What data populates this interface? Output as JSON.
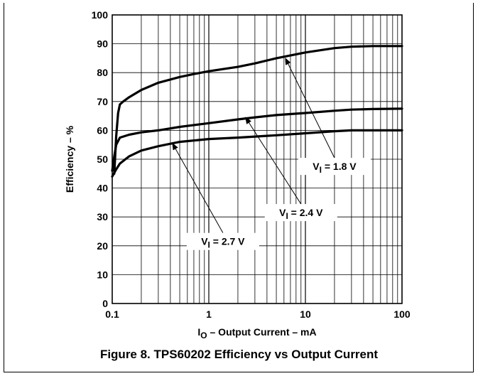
{
  "chart_data": {
    "type": "line",
    "title": "",
    "xlabel": {
      "main": "I",
      "sub": "O",
      "rest": " – Output Current – mA"
    },
    "ylabel": "Efficiency – %",
    "xscale": "log",
    "xlim": [
      0.1,
      100
    ],
    "ylim": [
      0,
      100
    ],
    "grid": true,
    "x_ticks": [
      {
        "value": 0.1,
        "label": "0.1"
      },
      {
        "value": 1,
        "label": "1"
      },
      {
        "value": 10,
        "label": "10"
      },
      {
        "value": 100,
        "label": "100"
      }
    ],
    "y_ticks": [
      0,
      10,
      20,
      30,
      40,
      50,
      60,
      70,
      80,
      90,
      100
    ],
    "series": [
      {
        "key": "vi18",
        "label": {
          "main": "V",
          "sub": "I",
          "rest": " = 1.8 V"
        },
        "points": [
          [
            0.105,
            45
          ],
          [
            0.11,
            58
          ],
          [
            0.115,
            66
          ],
          [
            0.12,
            69
          ],
          [
            0.13,
            70
          ],
          [
            0.15,
            71.5
          ],
          [
            0.2,
            74
          ],
          [
            0.3,
            76.5
          ],
          [
            0.5,
            78.5
          ],
          [
            0.7,
            79.5
          ],
          [
            1,
            80.5
          ],
          [
            2,
            82
          ],
          [
            3,
            83.2
          ],
          [
            5,
            85
          ],
          [
            10,
            87
          ],
          [
            20,
            88.5
          ],
          [
            30,
            89
          ],
          [
            50,
            89.2
          ],
          [
            100,
            89.2
          ]
        ]
      },
      {
        "key": "vi24",
        "label": {
          "main": "V",
          "sub": "I",
          "rest": " = 2.4 V"
        },
        "points": [
          [
            0.1,
            46
          ],
          [
            0.105,
            51
          ],
          [
            0.11,
            55
          ],
          [
            0.12,
            57.5
          ],
          [
            0.15,
            58.5
          ],
          [
            0.2,
            59.3
          ],
          [
            0.3,
            60
          ],
          [
            0.5,
            61.2
          ],
          [
            1,
            62.5
          ],
          [
            2,
            63.8
          ],
          [
            3,
            64.5
          ],
          [
            5,
            65.3
          ],
          [
            10,
            66
          ],
          [
            20,
            66.8
          ],
          [
            30,
            67.2
          ],
          [
            50,
            67.4
          ],
          [
            100,
            67.5
          ]
        ]
      },
      {
        "key": "vi27",
        "label": {
          "main": "V",
          "sub": "I",
          "rest": " = 2.7 V"
        },
        "points": [
          [
            0.1,
            44
          ],
          [
            0.11,
            46.5
          ],
          [
            0.12,
            48.5
          ],
          [
            0.15,
            51
          ],
          [
            0.2,
            53
          ],
          [
            0.3,
            54.5
          ],
          [
            0.5,
            56
          ],
          [
            1,
            57
          ],
          [
            2,
            57.5
          ],
          [
            5,
            58.3
          ],
          [
            10,
            59
          ],
          [
            20,
            59.7
          ],
          [
            30,
            60
          ],
          [
            50,
            60
          ],
          [
            100,
            60
          ]
        ]
      }
    ],
    "annotations": [
      {
        "series": "vi18",
        "arrow_to": [
          6.2,
          85
        ],
        "label_at": [
          20,
          48
        ]
      },
      {
        "series": "vi24",
        "arrow_to": [
          2.4,
          64.5
        ],
        "label_at": [
          9,
          32
        ]
      },
      {
        "series": "vi27",
        "arrow_to": [
          0.42,
          55.5
        ],
        "label_at": [
          1.4,
          22
        ]
      }
    ],
    "caption": "Figure 8. TPS60202 Efficiency vs Output Current"
  }
}
